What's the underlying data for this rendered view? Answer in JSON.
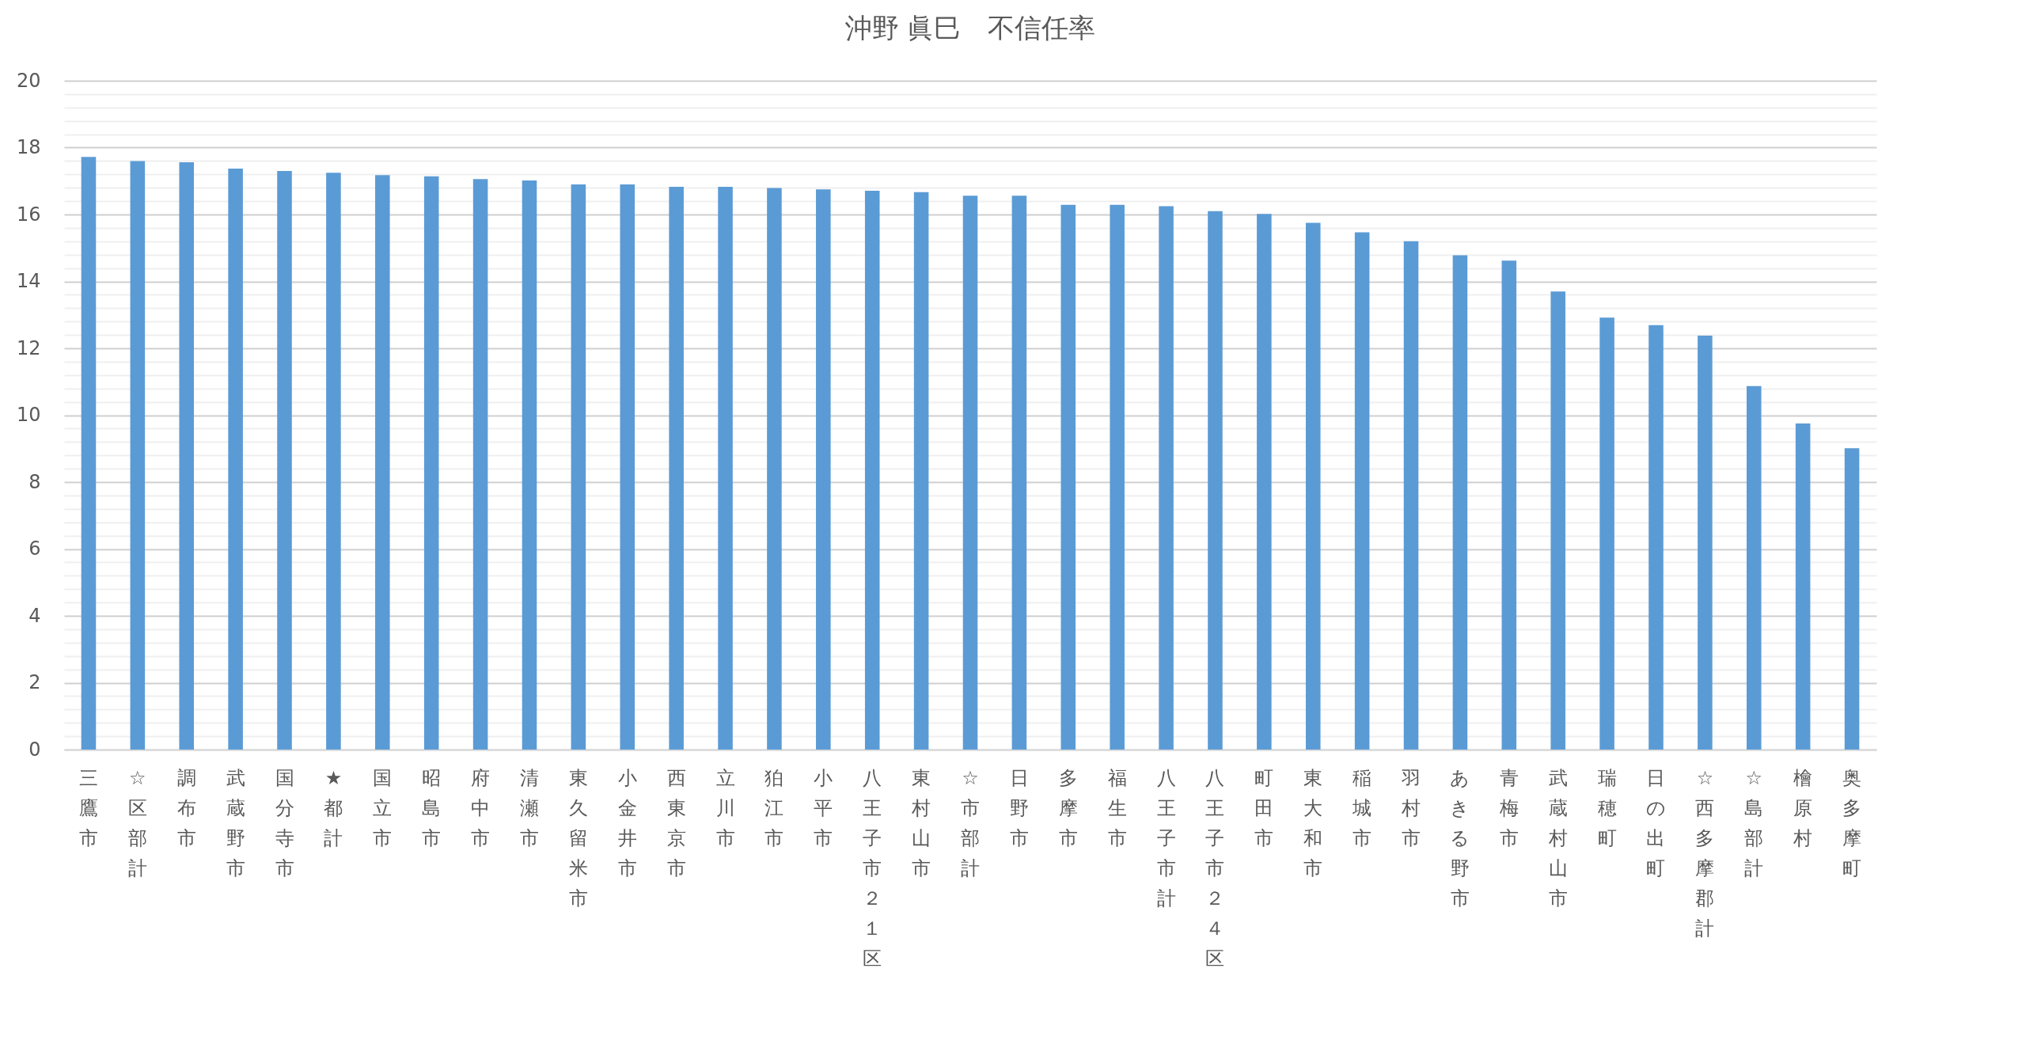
{
  "chart_data": {
    "type": "bar",
    "title": "沖野 眞巳　不信任率",
    "categories": [
      "三鷹市",
      "☆区部計",
      "調布市",
      "武蔵野市",
      "国分寺市",
      "★都計",
      "国立市",
      "昭島市",
      "府中市",
      "清瀬市",
      "東久留米市",
      "小金井市",
      "西東京市",
      "立川市",
      "狛江市",
      "小平市",
      "八王子市２１区",
      "東村山市",
      "☆市部計",
      "日野市",
      "多摩市",
      "福生市",
      "八王子市計",
      "八王子市２４区",
      "町田市",
      "東大和市",
      "稲城市",
      "羽村市",
      "あきる野市",
      "青梅市",
      "武蔵村山市",
      "瑞穂町",
      "日の出町",
      "☆西多摩郡計",
      "☆島部計",
      "檜原村",
      "奥多摩町"
    ],
    "values": [
      17.72,
      17.6,
      17.56,
      17.37,
      17.3,
      17.25,
      17.18,
      17.14,
      17.06,
      17.02,
      16.9,
      16.9,
      16.83,
      16.83,
      16.79,
      16.75,
      16.71,
      16.67,
      16.56,
      16.56,
      16.29,
      16.29,
      16.25,
      16.1,
      16.02,
      15.75,
      15.47,
      15.2,
      14.78,
      14.62,
      13.7,
      12.92,
      12.69,
      12.38,
      10.87,
      9.75,
      9.01
    ],
    "color": "#5b9bd5",
    "ylim": [
      0,
      20
    ],
    "yticks": [
      0,
      {
        "value": 0.4,
        "label": null
      },
      {
        "value": 0.8,
        "label": null
      },
      {
        "value": 1.2,
        "label": null
      },
      {
        "value": 1.6,
        "label": null
      },
      2,
      {
        "value": 2.4,
        "label": null
      },
      {
        "value": 2.8,
        "label": null
      },
      {
        "value": 3.2,
        "label": null
      },
      {
        "value": 3.6,
        "label": null
      },
      4,
      {
        "value": 4.4,
        "label": null
      },
      {
        "value": 4.8,
        "label": null
      },
      {
        "value": 5.2,
        "label": null
      },
      {
        "value": 5.6,
        "label": null
      },
      6,
      {
        "value": 6.4,
        "label": null
      },
      {
        "value": 6.8,
        "label": null
      },
      {
        "value": 7.2,
        "label": null
      },
      {
        "value": 7.6,
        "label": null
      },
      8,
      {
        "value": 8.4,
        "label": null
      },
      {
        "value": 8.8,
        "label": null
      },
      {
        "value": 9.2,
        "label": null
      },
      {
        "value": 9.6,
        "label": null
      },
      10,
      {
        "value": 10.4,
        "label": null
      },
      {
        "value": 10.8,
        "label": null
      },
      {
        "value": 11.2,
        "label": null
      },
      {
        "value": 11.6,
        "label": null
      },
      12,
      {
        "value": 12.4,
        "label": null
      },
      {
        "value": 12.8,
        "label": null
      },
      {
        "value": 13.2,
        "label": null
      },
      {
        "value": 13.6,
        "label": null
      },
      14,
      {
        "value": 14.4,
        "label": null
      },
      {
        "value": 14.8,
        "label": null
      },
      {
        "value": 15.2,
        "label": null
      },
      {
        "value": 15.6,
        "label": null
      },
      16,
      {
        "value": 16.4,
        "label": null
      },
      {
        "value": 16.8,
        "label": null
      },
      {
        "value": 17.2,
        "label": null
      },
      {
        "value": 17.6,
        "label": null
      },
      18,
      {
        "value": 18.4,
        "label": null
      },
      {
        "value": 18.8,
        "label": null
      },
      {
        "value": 19.2,
        "label": null
      },
      {
        "value": 19.6,
        "label": null
      },
      20
    ],
    "grid": true
  }
}
